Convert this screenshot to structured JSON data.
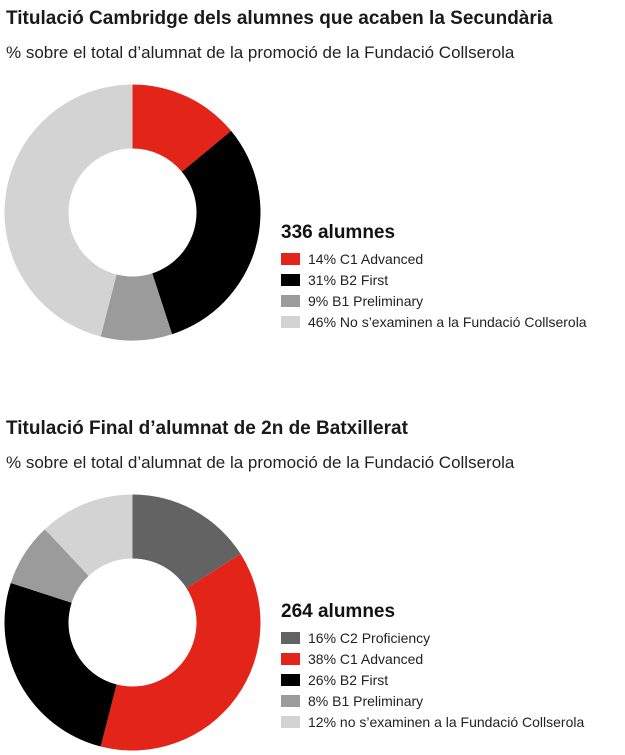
{
  "chart_data": [
    {
      "type": "pie",
      "title": "Titulació Cambridge dels alumnes que acaben la Secundària",
      "subtitle": "% sobre el total d’alumnat de la promoció de la Fundació Collserola",
      "total_label": "336 alumnes",
      "legend_placement": "right",
      "categories": [
        "C1 Advanced",
        "B2 First",
        "B1 Preliminary",
        "No s’examinen a la Fundació Collserola"
      ],
      "values": [
        14,
        31,
        9,
        46
      ],
      "legend_labels": [
        "14% C1 Advanced",
        "31% B2 First",
        "9% B1 Preliminary",
        "46% No s’examinen a la Fundació Collserola"
      ],
      "colors": [
        "#e32519",
        "#000000",
        "#9b9b9b",
        "#d3d3d3"
      ]
    },
    {
      "type": "pie",
      "title": "Titulació Final d’alumnat de 2n de Batxillerat",
      "subtitle": "% sobre el total d’alumnat de la promoció de la Fundació Collserola",
      "total_label": "264 alumnes",
      "legend_placement": "right",
      "categories": [
        "C2 Proficiency",
        "C1 Advanced",
        "B2 First",
        "B1 Preliminary",
        "no s’examinen a la Fundació Collserola"
      ],
      "values": [
        16,
        38,
        26,
        8,
        12
      ],
      "legend_labels": [
        "16% C2 Proficiency",
        "38% C1 Advanced",
        "26% B2 First",
        "8% B1 Preliminary",
        "12% no s’examinen a la Fundació Collserola"
      ],
      "colors": [
        "#636363",
        "#e32519",
        "#000000",
        "#9b9b9b",
        "#d3d3d3"
      ]
    }
  ]
}
